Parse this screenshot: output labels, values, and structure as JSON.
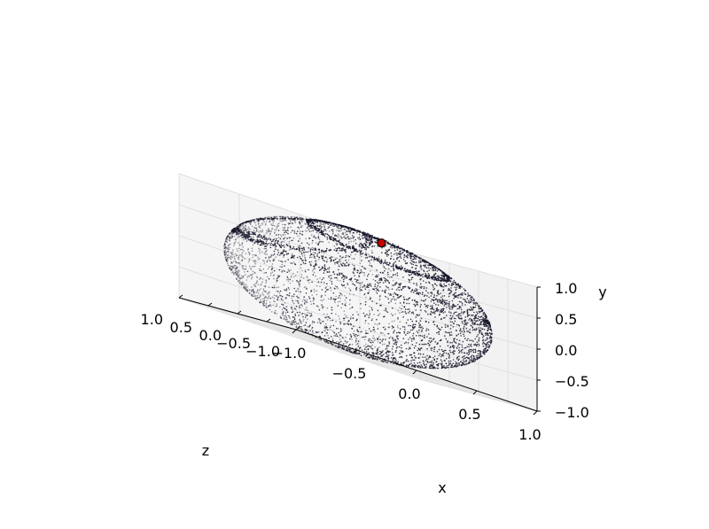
{
  "chart_data": {
    "type": "scatter",
    "projection": "3d",
    "title": "",
    "axes": {
      "x": {
        "label": "x",
        "lim": [
          -1.0,
          1.0
        ],
        "ticks": [
          -1.0,
          -0.5,
          0.0,
          0.5,
          1.0
        ],
        "tick_labels": [
          "−1.0",
          "−0.5",
          "0.0",
          "0.5",
          "1.0"
        ]
      },
      "y": {
        "label": "y",
        "lim": [
          -1.0,
          1.0
        ],
        "ticks": [
          -1.0,
          -0.5,
          0.0,
          0.5,
          1.0
        ],
        "tick_labels": [
          "−1.0",
          "−0.5",
          "0.0",
          "0.5",
          "1.0"
        ]
      },
      "z": {
        "label": "z",
        "lim": [
          -1.0,
          1.0
        ],
        "ticks": [
          -1.0,
          -0.5,
          0.0,
          0.5,
          1.0
        ],
        "tick_labels": [
          "−1.0",
          "−0.5",
          "0.0",
          "0.5",
          "1.0"
        ]
      }
    },
    "grid": true,
    "pane_color": "#f2f2f2",
    "series": [
      {
        "description": "points distributed on the unit sphere surface, denser along small circles",
        "color": "#1a1a2e",
        "point_count_approx": 6000,
        "sphere_radius": 1.0
      },
      {
        "description": "highlighted point",
        "color": "#cc0000",
        "edge_color": "#000000",
        "point": {
          "x": 0.0,
          "y": 0.9,
          "z": -0.4
        }
      }
    ]
  }
}
